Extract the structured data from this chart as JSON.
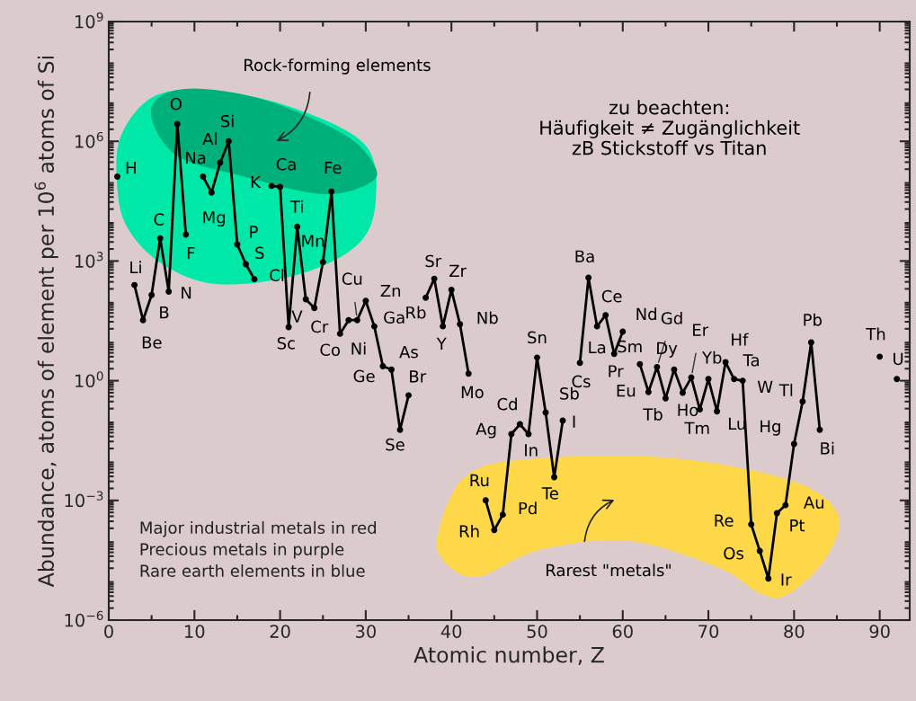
{
  "chart_data": {
    "type": "line",
    "xlabel": "Atomic number, Z",
    "ylabel": "Abundance, atoms of element per 10$^{6}$ atoms of Si",
    "x": [
      1,
      2,
      3,
      4,
      5,
      6,
      7,
      8,
      9,
      10,
      11,
      12,
      13,
      14,
      15,
      16,
      17,
      18,
      19,
      20,
      21,
      22,
      23,
      24,
      25,
      26,
      27,
      28,
      29,
      30,
      31,
      32,
      33,
      34,
      35,
      36,
      37,
      38,
      39,
      40,
      41,
      42,
      43,
      44,
      45,
      46,
      47,
      48,
      49,
      50,
      51,
      52,
      53,
      54,
      55,
      56,
      57,
      58,
      59,
      60,
      61,
      62,
      63,
      64,
      65,
      66,
      67,
      68,
      69,
      70,
      71,
      72,
      73,
      74,
      75,
      76,
      77,
      78,
      79,
      80,
      81,
      82,
      83,
      84,
      85,
      86,
      87,
      88,
      89,
      90,
      91,
      92
    ],
    "series": [
      {
        "color": "#000000",
        "values": [
          130000,
          null,
          250,
          33,
          140,
          3700,
          170,
          2700000,
          4600,
          null,
          130000,
          52000,
          290000,
          1000000,
          2600,
          830,
          350,
          null,
          76000,
          72000,
          22,
          7200,
          110,
          66,
          930,
          55000,
          15,
          33,
          33,
          100,
          23,
          2.3,
          1.9,
          0.059,
          0.43,
          null,
          120,
          360,
          23,
          190,
          26,
          1.5,
          null,
          0.001,
          0.00018,
          0.00044,
          0.046,
          0.081,
          0.046,
          3.8,
          0.16,
          0.0038,
          0.1,
          null,
          2.8,
          380,
          23,
          44,
          4.7,
          17,
          null,
          2.6,
          0.52,
          2.2,
          0.36,
          1.9,
          0.5,
          1.2,
          0.19,
          1.1,
          0.17,
          2.9,
          1.1,
          1.0,
          0.00025,
          5.4e-05,
          1.1e-05,
          0.00048,
          0.00076,
          0.026,
          0.3,
          9.1,
          0.059,
          null,
          null,
          null,
          null,
          null,
          null,
          4.0,
          null,
          1.1
        ]
      }
    ],
    "marker": "circle",
    "line_style": "solid",
    "log": "y",
    "grid": false,
    "legend": false,
    "xlim": [
      0,
      93.5
    ],
    "xticks": [
      0,
      10,
      20,
      30,
      40,
      50,
      60,
      70,
      80,
      90
    ],
    "ylim": [
      1e-06,
      1000000000
    ],
    "yticks": [
      {
        "value": 1e-06,
        "label": "10$^{−6}$"
      },
      {
        "value": 0.001,
        "label": "10$^{−3}$"
      },
      {
        "value": 1,
        "label": "10$^{0}$"
      },
      {
        "value": 1000,
        "label": "10$^{3}$"
      },
      {
        "value": 1000000,
        "label": "10$^{6}$"
      },
      {
        "value": 1000000000,
        "label": "10$^{9}$"
      }
    ],
    "annotations": [
      "Rock-forming elements",
      "zu beachten:\nHäufigkeit ≠ Zugänglichkeit\nzB Stickstoff vs Titan",
      "Major industrial metals in red",
      "Precious metals in purple",
      "Rare earth elements in blue",
      "Rarest \"metals\"",
      {
        "text": "H",
        "x": 1,
        "y": 130000
      },
      {
        "text": "Li",
        "x": 3,
        "y": 250
      },
      {
        "text": "Be",
        "x": 4,
        "y": 33
      },
      {
        "text": "B",
        "x": 5,
        "y": 140
      },
      {
        "text": "C",
        "x": 6,
        "y": 3700
      },
      {
        "text": "N",
        "x": 7,
        "y": 170
      },
      {
        "text": "O",
        "x": 8,
        "y": 2700000
      },
      {
        "text": "F",
        "x": 9,
        "y": 4600
      },
      {
        "text": "Na",
        "x": 11,
        "y": 130000
      },
      {
        "text": "Mg",
        "x": 12,
        "y": 52000
      },
      {
        "text": "Al",
        "x": 13,
        "y": 290000
      },
      {
        "text": "Si",
        "x": 14,
        "y": 1000000
      },
      {
        "text": "P",
        "x": 15,
        "y": 2600
      },
      {
        "text": "S",
        "x": 16,
        "y": 830
      },
      {
        "text": "Cl",
        "x": 17,
        "y": 350
      },
      {
        "text": "K",
        "x": 19,
        "y": 76000
      },
      {
        "text": "Ca",
        "x": 20,
        "y": 72000
      },
      {
        "text": "Sc",
        "x": 21,
        "y": 22
      },
      {
        "text": "Ti",
        "x": 22,
        "y": 7200
      },
      {
        "text": "V",
        "x": 23,
        "y": 110
      },
      {
        "text": "Cr",
        "x": 24,
        "y": 66
      },
      {
        "text": "Mn",
        "x": 25,
        "y": 930
      },
      {
        "text": "Fe",
        "x": 26,
        "y": 55000
      },
      {
        "text": "Co",
        "x": 27,
        "y": 15
      },
      {
        "text": "Ni",
        "x": 28,
        "y": 33
      },
      {
        "text": "Cu",
        "x": 29,
        "y": 33
      },
      {
        "text": "Zn",
        "x": 30,
        "y": 100
      },
      {
        "text": "Ga",
        "x": 31,
        "y": 23
      },
      {
        "text": "Ge",
        "x": 32,
        "y": 2.3
      },
      {
        "text": "As",
        "x": 33,
        "y": 1.9
      },
      {
        "text": "Se",
        "x": 34,
        "y": 0.059
      },
      {
        "text": "Br",
        "x": 35,
        "y": 0.43
      },
      {
        "text": "Rb",
        "x": 37,
        "y": 120
      },
      {
        "text": "Sr",
        "x": 38,
        "y": 360
      },
      {
        "text": "Y",
        "x": 39,
        "y": 23
      },
      {
        "text": "Zr",
        "x": 40,
        "y": 190
      },
      {
        "text": "Nb",
        "x": 41,
        "y": 26
      },
      {
        "text": "Mo",
        "x": 42,
        "y": 1.5
      },
      {
        "text": "Ru",
        "x": 44,
        "y": 0.001
      },
      {
        "text": "Rh",
        "x": 45,
        "y": 0.00018
      },
      {
        "text": "Pd",
        "x": 46,
        "y": 0.00044
      },
      {
        "text": "Ag",
        "x": 47,
        "y": 0.046
      },
      {
        "text": "Cd",
        "x": 48,
        "y": 0.081
      },
      {
        "text": "In",
        "x": 49,
        "y": 0.046
      },
      {
        "text": "Sn",
        "x": 50,
        "y": 3.8
      },
      {
        "text": "Sb",
        "x": 51,
        "y": 0.16
      },
      {
        "text": "Te",
        "x": 52,
        "y": 0.0038
      },
      {
        "text": "I",
        "x": 53,
        "y": 0.1
      },
      {
        "text": "Cs",
        "x": 55,
        "y": 2.8
      },
      {
        "text": "Ba",
        "x": 56,
        "y": 380
      },
      {
        "text": "La",
        "x": 57,
        "y": 23
      },
      {
        "text": "Ce",
        "x": 58,
        "y": 44
      },
      {
        "text": "Pr",
        "x": 59,
        "y": 4.7
      },
      {
        "text": "Nd",
        "x": 60,
        "y": 17
      },
      {
        "text": "Sm",
        "x": 62,
        "y": 2.6
      },
      {
        "text": "Eu",
        "x": 63,
        "y": 0.52
      },
      {
        "text": "Gd",
        "x": 64,
        "y": 2.2
      },
      {
        "text": "Tb",
        "x": 65,
        "y": 0.36
      },
      {
        "text": "Dy",
        "x": 66,
        "y": 1.9
      },
      {
        "text": "Ho",
        "x": 67,
        "y": 0.5
      },
      {
        "text": "Er",
        "x": 68,
        "y": 1.2
      },
      {
        "text": "Tm",
        "x": 69,
        "y": 0.19
      },
      {
        "text": "Yb",
        "x": 70,
        "y": 1.1
      },
      {
        "text": "Lu",
        "x": 71,
        "y": 0.17
      },
      {
        "text": "Hf",
        "x": 72,
        "y": 2.9
      },
      {
        "text": "Ta",
        "x": 73,
        "y": 1.1
      },
      {
        "text": "W",
        "x": 74,
        "y": 1.0
      },
      {
        "text": "Re",
        "x": 75,
        "y": 0.00025
      },
      {
        "text": "Os",
        "x": 76,
        "y": 5.4e-05
      },
      {
        "text": "Ir",
        "x": 77,
        "y": 1.1e-05
      },
      {
        "text": "Pt",
        "x": 78,
        "y": 0.00048
      },
      {
        "text": "Au",
        "x": 79,
        "y": 0.00076
      },
      {
        "text": "Hg",
        "x": 80,
        "y": 0.026
      },
      {
        "text": "Tl",
        "x": 81,
        "y": 0.3
      },
      {
        "text": "Pb",
        "x": 82,
        "y": 9.1
      },
      {
        "text": "Bi",
        "x": 83,
        "y": 0.059
      },
      {
        "text": "Th",
        "x": 90,
        "y": 4.0
      },
      {
        "text": "U",
        "x": 92,
        "y": 1.1
      }
    ]
  }
}
